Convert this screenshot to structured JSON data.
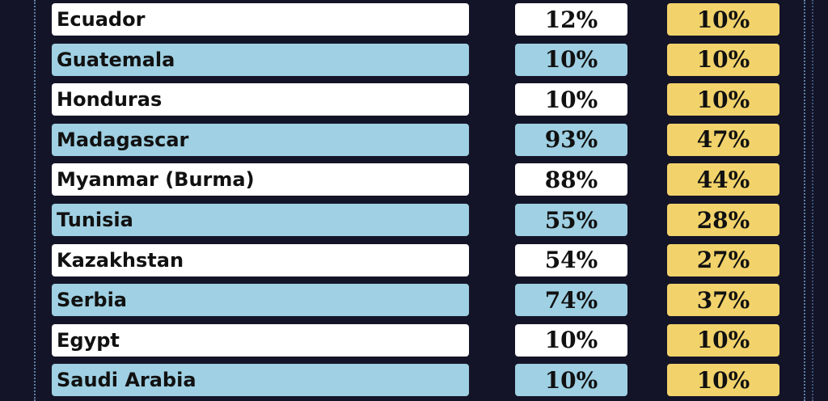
{
  "colors": {
    "background": "#141428",
    "white_row": "#ffffff",
    "blue_row": "#9fd0e3",
    "yellow_cell": "#f2d36b",
    "text": "#111111"
  },
  "rows": [
    {
      "country": "Ecuador",
      "col1": "12%",
      "col2": "10%"
    },
    {
      "country": "Guatemala",
      "col1": "10%",
      "col2": "10%"
    },
    {
      "country": "Honduras",
      "col1": "10%",
      "col2": "10%"
    },
    {
      "country": "Madagascar",
      "col1": "93%",
      "col2": "47%"
    },
    {
      "country": "Myanmar (Burma)",
      "col1": "88%",
      "col2": "44%"
    },
    {
      "country": "Tunisia",
      "col1": "55%",
      "col2": "28%"
    },
    {
      "country": "Kazakhstan",
      "col1": "54%",
      "col2": "27%"
    },
    {
      "country": "Serbia",
      "col1": "74%",
      "col2": "37%"
    },
    {
      "country": "Egypt",
      "col1": "10%",
      "col2": "10%"
    },
    {
      "country": "Saudi Arabia",
      "col1": "10%",
      "col2": "10%"
    }
  ]
}
